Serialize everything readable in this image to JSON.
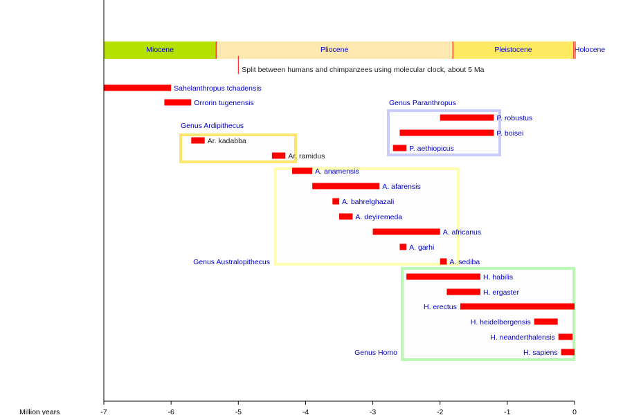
{
  "chart_data": {
    "type": "bar",
    "orientation": "horizontal-range",
    "xlabel": "Million years",
    "xlim": [
      -7,
      0
    ],
    "xticks": [
      "-7",
      "-6",
      "-5",
      "-4",
      "-3",
      "-2",
      "-1",
      "0"
    ],
    "grid": false,
    "colors": {
      "bar": "#ff0000",
      "label": "#0000c8",
      "label_dark": "#222222"
    },
    "epochs": [
      {
        "name": "Miocene",
        "start": -7,
        "end": -5.33,
        "color": "#b5e000"
      },
      {
        "name": "Pliocene",
        "start": -5.33,
        "end": -1.81,
        "color": "#fde9b0"
      },
      {
        "name": "Pleistocene",
        "start": -1.81,
        "end": -0.0117,
        "color": "#feea60"
      },
      {
        "name": "Holocene",
        "start": -0.0117,
        "end": 0,
        "color": "#fef2c0"
      }
    ],
    "annotation": {
      "x": -5,
      "text": "Split between humans and chimpanzees using molecular clock, about 5 Ma"
    },
    "series": [
      {
        "name": "Sahelanthropus tchadensis",
        "start": -7.0,
        "end": -6.0,
        "label_side": "right"
      },
      {
        "name": "Orrorin tugenensis",
        "start": -6.1,
        "end": -5.7,
        "label_side": "right"
      },
      {
        "name": "Ar. kadabba",
        "start": -5.7,
        "end": -5.5,
        "label_side": "right",
        "dark": true
      },
      {
        "name": "Ar. ramidus",
        "start": -4.5,
        "end": -4.3,
        "label_side": "right",
        "dark": true
      },
      {
        "name": "A. anamensis",
        "start": -4.2,
        "end": -3.9,
        "label_side": "right"
      },
      {
        "name": "A. afarensis",
        "start": -3.9,
        "end": -2.9,
        "label_side": "right"
      },
      {
        "name": "A. bahrelghazali",
        "start": -3.6,
        "end": -3.5,
        "label_side": "right"
      },
      {
        "name": "A. deyiremeda",
        "start": -3.5,
        "end": -3.3,
        "label_side": "right"
      },
      {
        "name": "A. africanus",
        "start": -3.0,
        "end": -2.0,
        "label_side": "right"
      },
      {
        "name": "A. garhi",
        "start": -2.6,
        "end": -2.5,
        "label_side": "right"
      },
      {
        "name": "A. sediba",
        "start": -2.0,
        "end": -1.9,
        "label_side": "right"
      },
      {
        "name": "P. robustus",
        "start": -2.0,
        "end": -1.2,
        "label_side": "right"
      },
      {
        "name": "P. boisei",
        "start": -2.6,
        "end": -1.2,
        "label_side": "right"
      },
      {
        "name": "P. aethiopicus",
        "start": -2.7,
        "end": -2.5,
        "label_side": "right"
      },
      {
        "name": "H. habilis",
        "start": -2.5,
        "end": -1.4,
        "label_side": "right"
      },
      {
        "name": "H. ergaster",
        "start": -1.9,
        "end": -1.4,
        "label_side": "right"
      },
      {
        "name": "H. erectus",
        "start": -1.7,
        "end": 0,
        "label_side": "left"
      },
      {
        "name": "H. heidelbergensis",
        "start": -0.6,
        "end": -0.25,
        "label_side": "left"
      },
      {
        "name": "H. neanderthalensis",
        "start": -0.24,
        "end": -0.03,
        "label_side": "left"
      },
      {
        "name": "H. sapiens",
        "start": -0.2,
        "end": 0,
        "label_side": "left"
      }
    ],
    "groups": [
      {
        "name": "Genus Ardipithecus",
        "color": "#fae76c"
      },
      {
        "name": "Genus Paranthropus",
        "color": "#ccccf8"
      },
      {
        "name": "Genus Australopithecus",
        "color": "#ffffb0"
      },
      {
        "name": "Genus Homo",
        "color": "#b8f8b4"
      }
    ]
  }
}
